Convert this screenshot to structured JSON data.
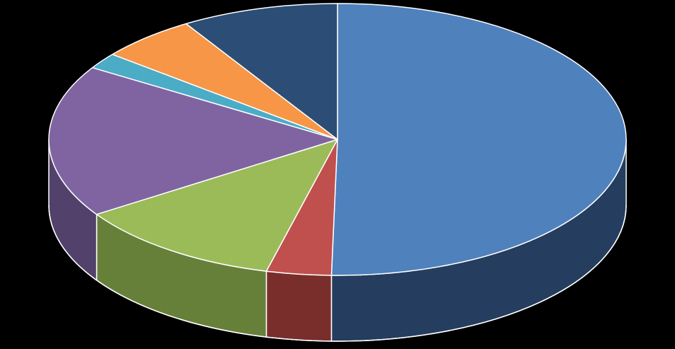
{
  "chart_data": {
    "type": "pie",
    "style": "3d",
    "title": "",
    "start": "top, clockwise",
    "legend": "none",
    "data_labels": "none",
    "slices": [
      {
        "value": 52.7,
        "color": "#4F81BD",
        "side_color": "#253D5E"
      },
      {
        "value": 3.8,
        "color": "#C0504D",
        "side_color": "#7A2E2B"
      },
      {
        "value": 12.3,
        "color": "#9BBB59",
        "side_color": "#66803A"
      },
      {
        "value": 19.0,
        "color": "#8064A2",
        "side_color": "#52416B"
      },
      {
        "value": 2.0,
        "color": "#4BACC6",
        "side_color": "#2C7386"
      },
      {
        "value": 5.7,
        "color": "#F79646",
        "side_color": "#A8622B"
      },
      {
        "value": 9.2,
        "color": "#2C4D75",
        "side_color": "#1B304A"
      }
    ],
    "background": "#000000",
    "edge_color": "#FFFFFF"
  }
}
